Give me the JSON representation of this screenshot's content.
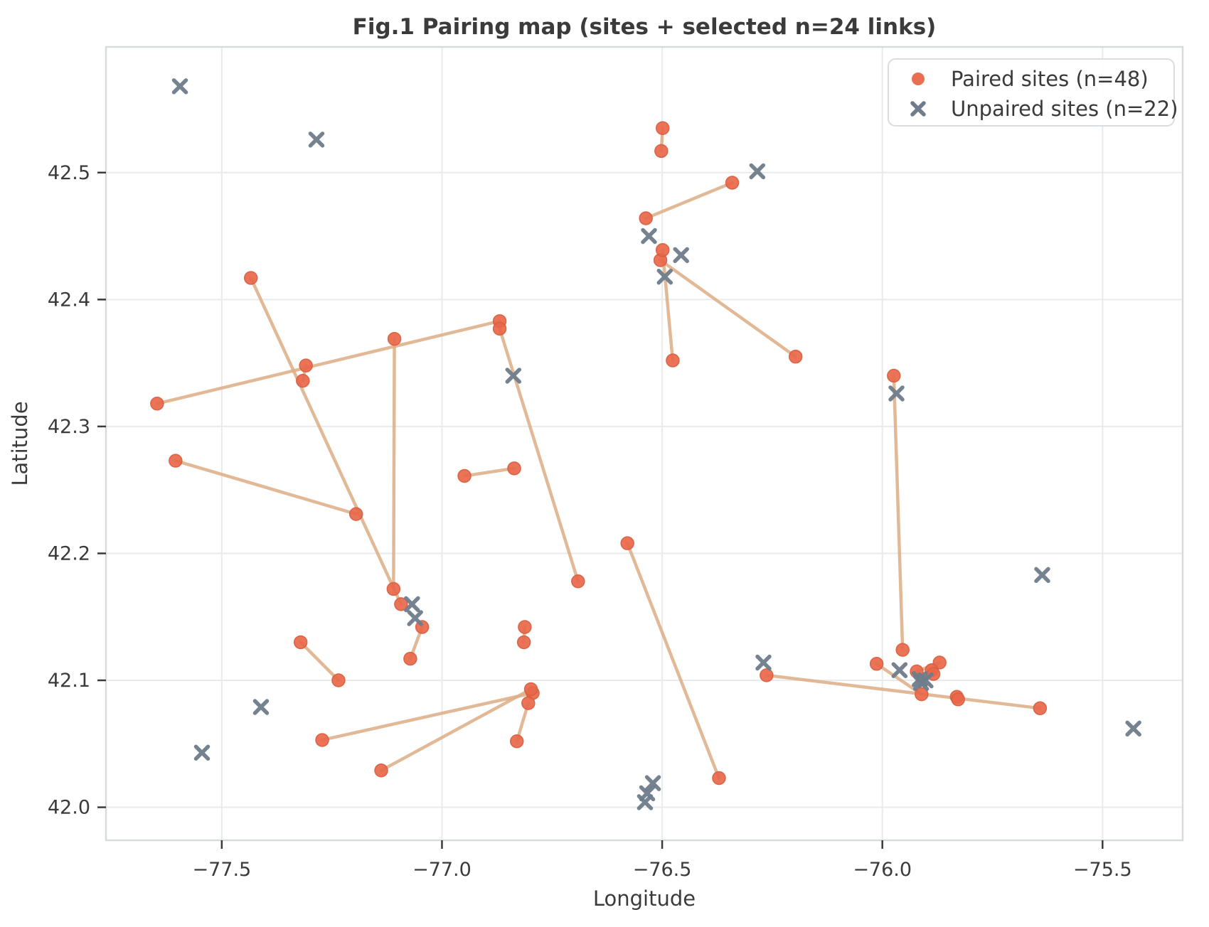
{
  "figure": {
    "title": "Fig.1 Pairing map (sites + selected n=24 links)",
    "xlabel": "Longitude",
    "ylabel": "Latitude"
  },
  "legend": {
    "items": [
      {
        "label": "Paired sites (n=48)",
        "marker": "dot"
      },
      {
        "label": "Unpaired sites (n=22)",
        "marker": "x"
      }
    ]
  },
  "colors": {
    "paired_dot": "#e8674a",
    "paired_dot_edge": "#d85c3e",
    "unpaired_x": "#6e7c8b",
    "link_line": "#ddad85",
    "grid": "#e9eaec",
    "spine": "#d7dbde",
    "tick": "#3b3b3b",
    "text": "#3b3b3b",
    "background": "#ffffff"
  },
  "chart_data": {
    "type": "scatter",
    "title": "Fig.1 Pairing map (sites + selected n=24 links)",
    "xlabel": "Longitude",
    "ylabel": "Latitude",
    "xlim": [
      -77.763,
      -75.318
    ],
    "ylim": [
      41.974,
      42.599
    ],
    "grid": true,
    "legend_position": "upper right",
    "xticks": [
      {
        "v": -77.5,
        "label": "−77.5"
      },
      {
        "v": -77.0,
        "label": "−77.0"
      },
      {
        "v": -76.5,
        "label": "−76.5"
      },
      {
        "v": -76.0,
        "label": "−76.0"
      },
      {
        "v": -75.5,
        "label": "−75.5"
      }
    ],
    "yticks": [
      {
        "v": 42.0,
        "label": "42.0"
      },
      {
        "v": 42.1,
        "label": "42.1"
      },
      {
        "v": 42.2,
        "label": "42.2"
      },
      {
        "v": 42.3,
        "label": "42.3"
      },
      {
        "v": 42.4,
        "label": "42.4"
      },
      {
        "v": 42.5,
        "label": "42.5"
      }
    ],
    "series": [
      {
        "name": "Paired sites (n=48)",
        "marker": "dot"
      },
      {
        "name": "Unpaired sites (n=22)",
        "marker": "x"
      }
    ],
    "paired_sites": [
      [
        -76.499,
        42.535
      ],
      [
        -76.502,
        42.517
      ],
      [
        -76.341,
        42.492
      ],
      [
        -76.537,
        42.464
      ],
      [
        -76.504,
        42.431
      ],
      [
        -76.197,
        42.355
      ],
      [
        -76.499,
        42.439
      ],
      [
        -76.476,
        42.352
      ],
      [
        -77.434,
        42.417
      ],
      [
        -77.093,
        42.16
      ],
      [
        -77.108,
        42.369
      ],
      [
        -77.11,
        42.172
      ],
      [
        -77.647,
        42.318
      ],
      [
        -76.869,
        42.383
      ],
      [
        -76.869,
        42.377
      ],
      [
        -76.691,
        42.178
      ],
      [
        -77.309,
        42.348
      ],
      [
        -77.316,
        42.336
      ],
      [
        -77.605,
        42.273
      ],
      [
        -77.195,
        42.231
      ],
      [
        -76.949,
        42.261
      ],
      [
        -76.836,
        42.267
      ],
      [
        -76.579,
        42.208
      ],
      [
        -76.371,
        42.023
      ],
      [
        -77.045,
        42.142
      ],
      [
        -77.072,
        42.117
      ],
      [
        -76.812,
        42.142
      ],
      [
        -76.814,
        42.13
      ],
      [
        -77.321,
        42.13
      ],
      [
        -77.235,
        42.1
      ],
      [
        -77.272,
        42.053
      ],
      [
        -76.794,
        42.09
      ],
      [
        -77.138,
        42.029
      ],
      [
        -76.798,
        42.093
      ],
      [
        -76.83,
        42.052
      ],
      [
        -76.804,
        42.082
      ],
      [
        -75.974,
        42.34
      ],
      [
        -75.954,
        42.124
      ],
      [
        -76.013,
        42.113
      ],
      [
        -75.911,
        42.089
      ],
      [
        -75.87,
        42.114
      ],
      [
        -75.922,
        42.107
      ],
      [
        -75.888,
        42.108
      ],
      [
        -75.884,
        42.105
      ],
      [
        -76.263,
        42.104
      ],
      [
        -75.642,
        42.078
      ],
      [
        -75.831,
        42.087
      ],
      [
        -75.828,
        42.085
      ]
    ],
    "links": [
      [
        0,
        1
      ],
      [
        2,
        3
      ],
      [
        4,
        5
      ],
      [
        6,
        7
      ],
      [
        8,
        9
      ],
      [
        10,
        11
      ],
      [
        12,
        13
      ],
      [
        14,
        15
      ],
      [
        16,
        17
      ],
      [
        18,
        19
      ],
      [
        20,
        21
      ],
      [
        22,
        23
      ],
      [
        24,
        25
      ],
      [
        26,
        27
      ],
      [
        28,
        29
      ],
      [
        30,
        31
      ],
      [
        32,
        33
      ],
      [
        34,
        35
      ],
      [
        36,
        37
      ],
      [
        38,
        39
      ],
      [
        40,
        41
      ],
      [
        42,
        43
      ],
      [
        44,
        45
      ],
      [
        46,
        47
      ]
    ],
    "unpaired_sites": [
      [
        -77.595,
        42.568
      ],
      [
        -77.285,
        42.526
      ],
      [
        -76.284,
        42.501
      ],
      [
        -76.53,
        42.45
      ],
      [
        -76.457,
        42.435
      ],
      [
        -76.494,
        42.418
      ],
      [
        -76.838,
        42.34
      ],
      [
        -75.968,
        42.326
      ],
      [
        -77.068,
        42.16
      ],
      [
        -77.061,
        42.149
      ],
      [
        -77.411,
        42.079
      ],
      [
        -77.545,
        42.043
      ],
      [
        -75.637,
        42.183
      ],
      [
        -76.27,
        42.114
      ],
      [
        -75.961,
        42.108
      ],
      [
        -75.915,
        42.101
      ],
      [
        -75.902,
        42.1
      ],
      [
        -75.912,
        42.098
      ],
      [
        -75.43,
        42.062
      ],
      [
        -76.521,
        42.019
      ],
      [
        -76.534,
        42.011
      ],
      [
        -76.539,
        42.004
      ]
    ]
  }
}
